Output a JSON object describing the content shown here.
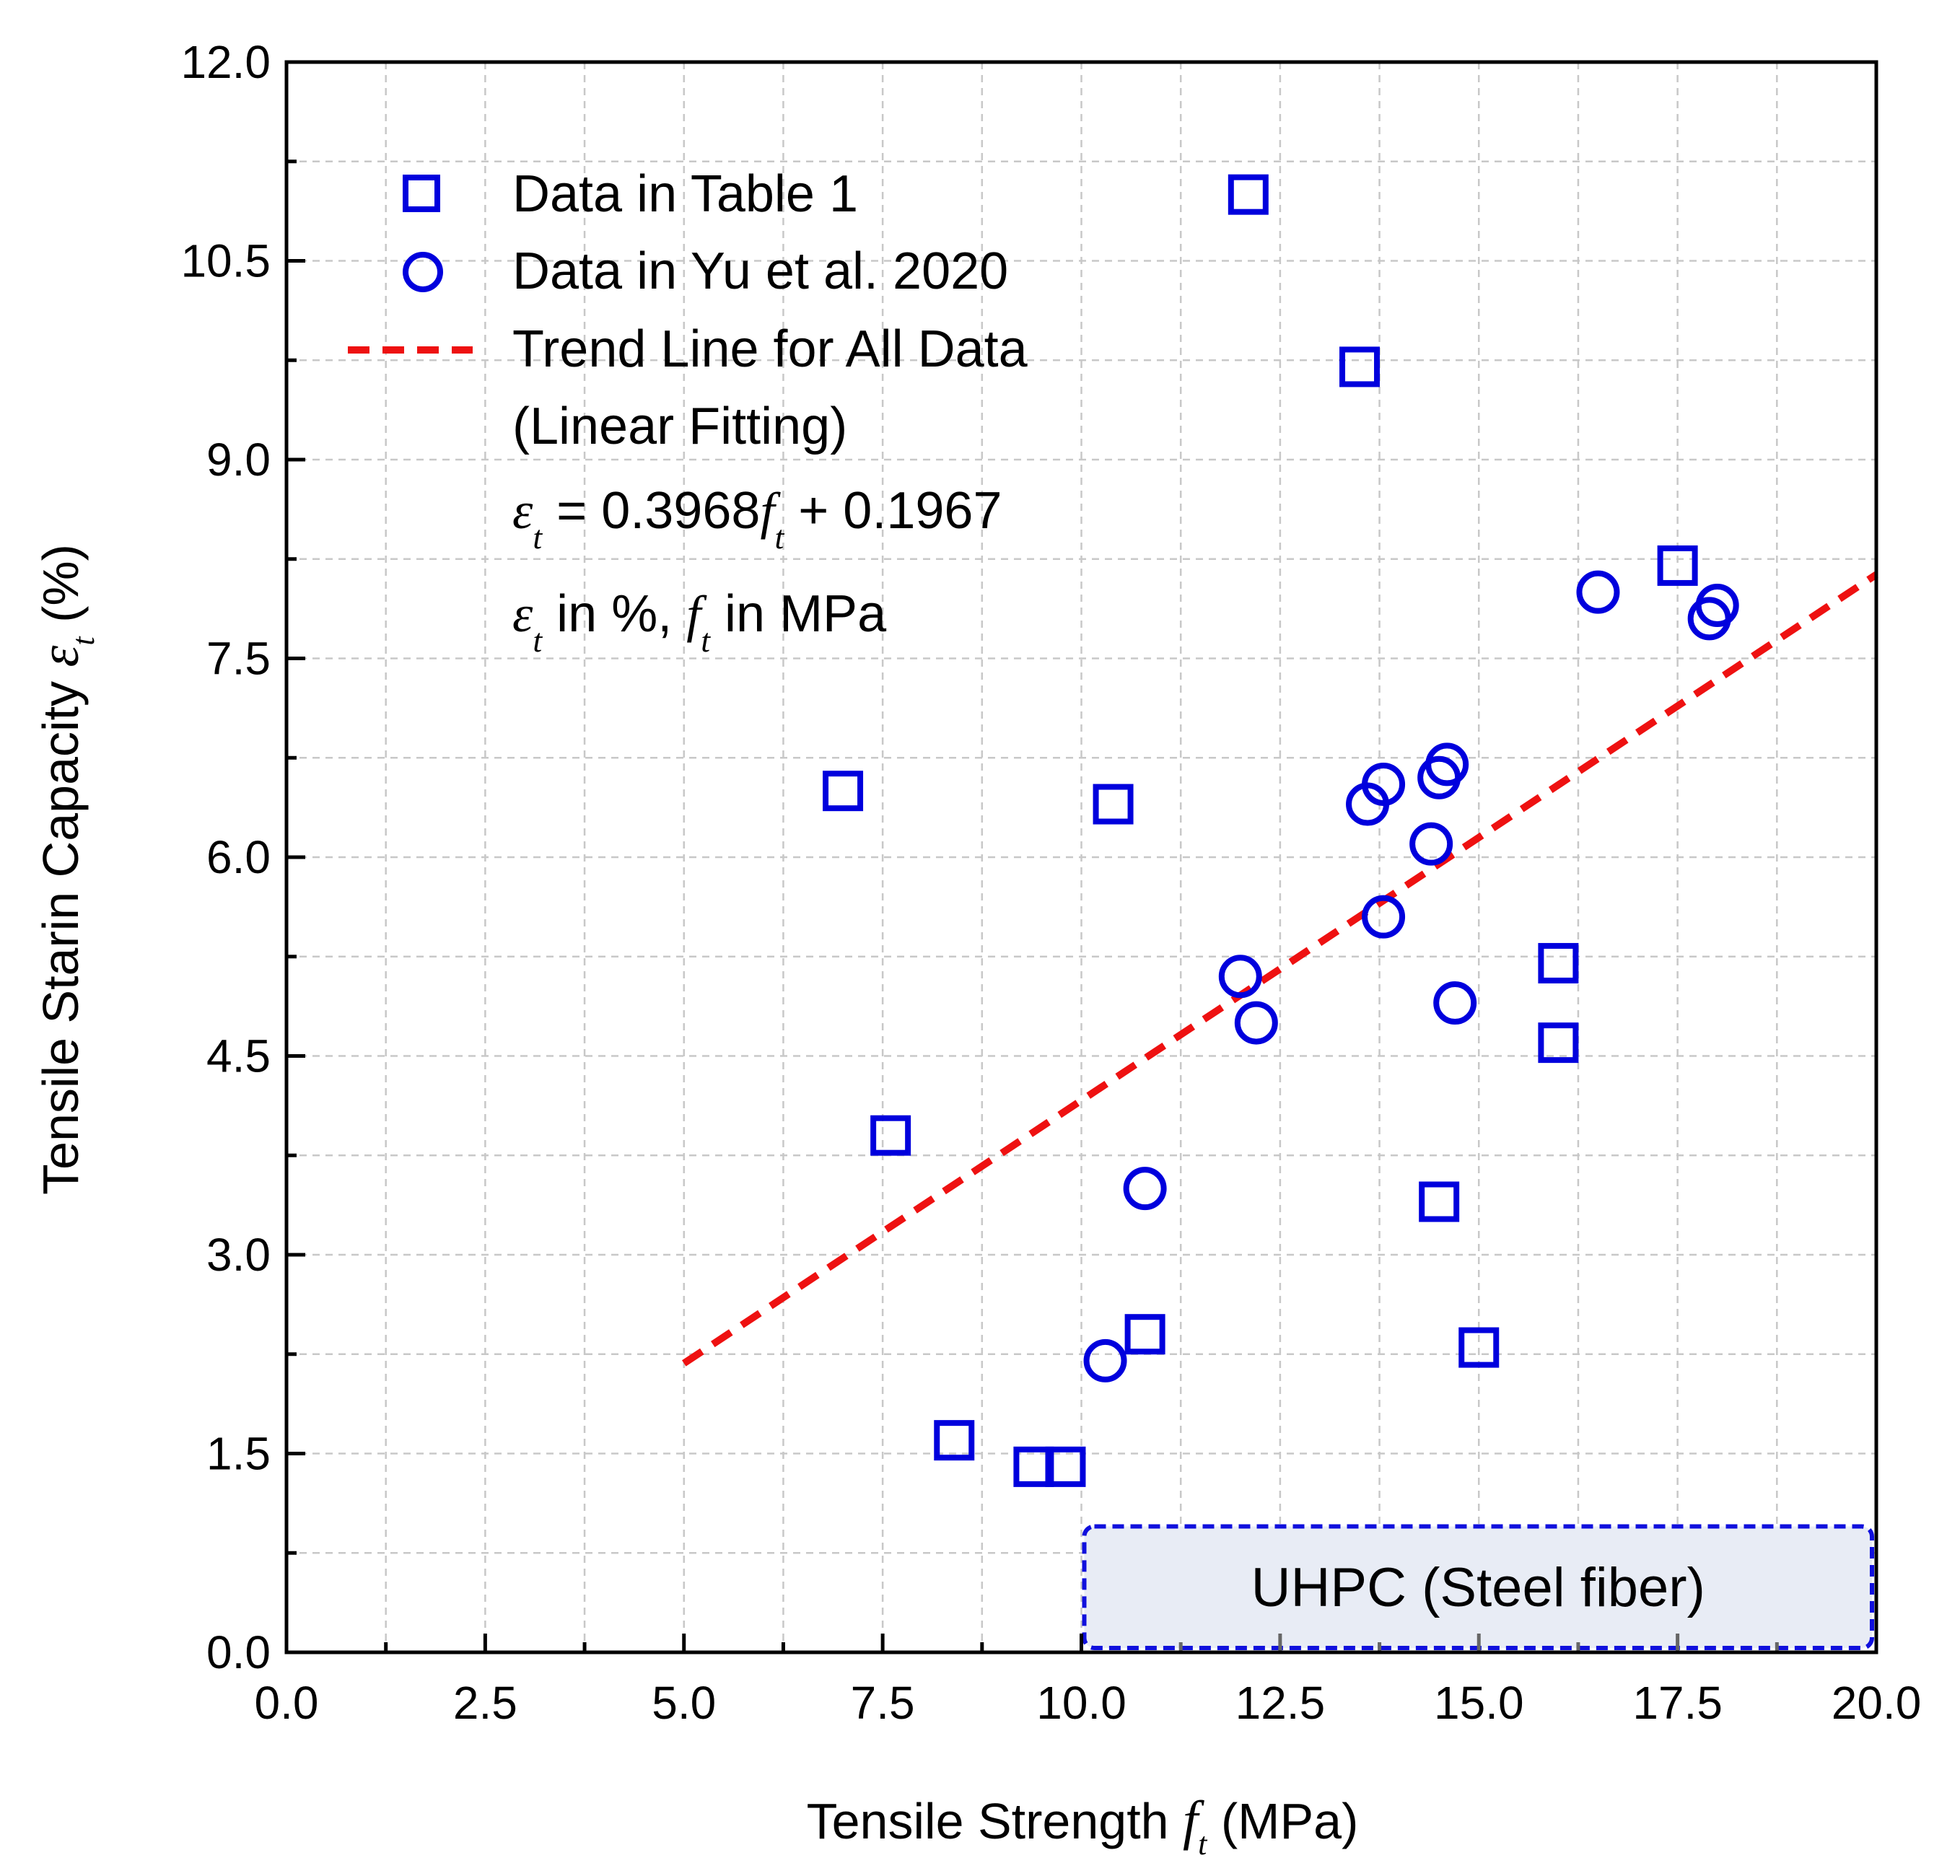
{
  "chart_data": {
    "type": "scatter",
    "xlabel_pre": "Tensile Strength ",
    "xlabel_sym": "f",
    "xlabel_sub": "t",
    "xlabel_post": " (MPa)",
    "ylabel_pre": "Tensile Starin Capacity ",
    "ylabel_sym": "ε",
    "ylabel_sub": "t",
    "ylabel_post": " (%)",
    "xlim": [
      0,
      20
    ],
    "ylim": [
      0,
      12
    ],
    "x_ticks": [
      "0.0",
      "2.5",
      "5.0",
      "7.5",
      "10.0",
      "12.5",
      "15.0",
      "17.5",
      "20.0"
    ],
    "y_ticks": [
      "0.0",
      "1.5",
      "3.0",
      "4.5",
      "6.0",
      "7.5",
      "9.0",
      "10.5",
      "12.0"
    ],
    "grid": true,
    "series": [
      {
        "name": "Data in Table 1",
        "marker": "square",
        "color": "#0000dd",
        "points": [
          [
            12.1,
            11.0
          ],
          [
            13.5,
            9.7
          ],
          [
            17.5,
            8.2
          ],
          [
            7.0,
            6.5
          ],
          [
            10.4,
            6.4
          ],
          [
            16.0,
            5.2
          ],
          [
            16.0,
            4.6
          ],
          [
            7.6,
            3.9
          ],
          [
            14.5,
            3.4
          ],
          [
            10.8,
            2.4
          ],
          [
            15.0,
            2.3
          ],
          [
            8.4,
            1.6
          ],
          [
            9.4,
            1.4
          ],
          [
            9.8,
            1.4
          ]
        ]
      },
      {
        "name": "Data in Yu et al. 2020",
        "marker": "circle",
        "color": "#0000dd",
        "points": [
          [
            16.5,
            8.0
          ],
          [
            17.9,
            7.8
          ],
          [
            18.0,
            7.9
          ],
          [
            14.6,
            6.7
          ],
          [
            14.5,
            6.6
          ],
          [
            13.8,
            6.55
          ],
          [
            13.6,
            6.4
          ],
          [
            14.4,
            6.1
          ],
          [
            13.8,
            5.55
          ],
          [
            12.0,
            5.1
          ],
          [
            12.2,
            4.75
          ],
          [
            14.7,
            4.9
          ],
          [
            10.8,
            3.5
          ],
          [
            10.3,
            2.2
          ]
        ]
      }
    ],
    "trend_line": {
      "name": "Trend Line for All Data",
      "name_line2": "(Linear Fitting)",
      "slope": 0.3968,
      "intercept": 0.1967,
      "x_range": [
        5.0,
        20.0
      ],
      "color": "#ee1111"
    },
    "equation": {
      "lhs_sym": "ε",
      "lhs_sub": "t",
      "eq_text": " = 0.3968",
      "f_sym": "f",
      "f_sub": "t",
      "const_text": " + 0.1967"
    },
    "units_note": {
      "e_sym": "ε",
      "e_sub": "t",
      "text1": " in %, ",
      "f_sym": "f",
      "f_sub": "t",
      "text2": " in MPa"
    },
    "annotation": {
      "text": "UHPC (Steel fiber)",
      "x_range": [
        10.0,
        20.0
      ],
      "fill": "#e8ecf5",
      "border": "#1010dd"
    }
  }
}
